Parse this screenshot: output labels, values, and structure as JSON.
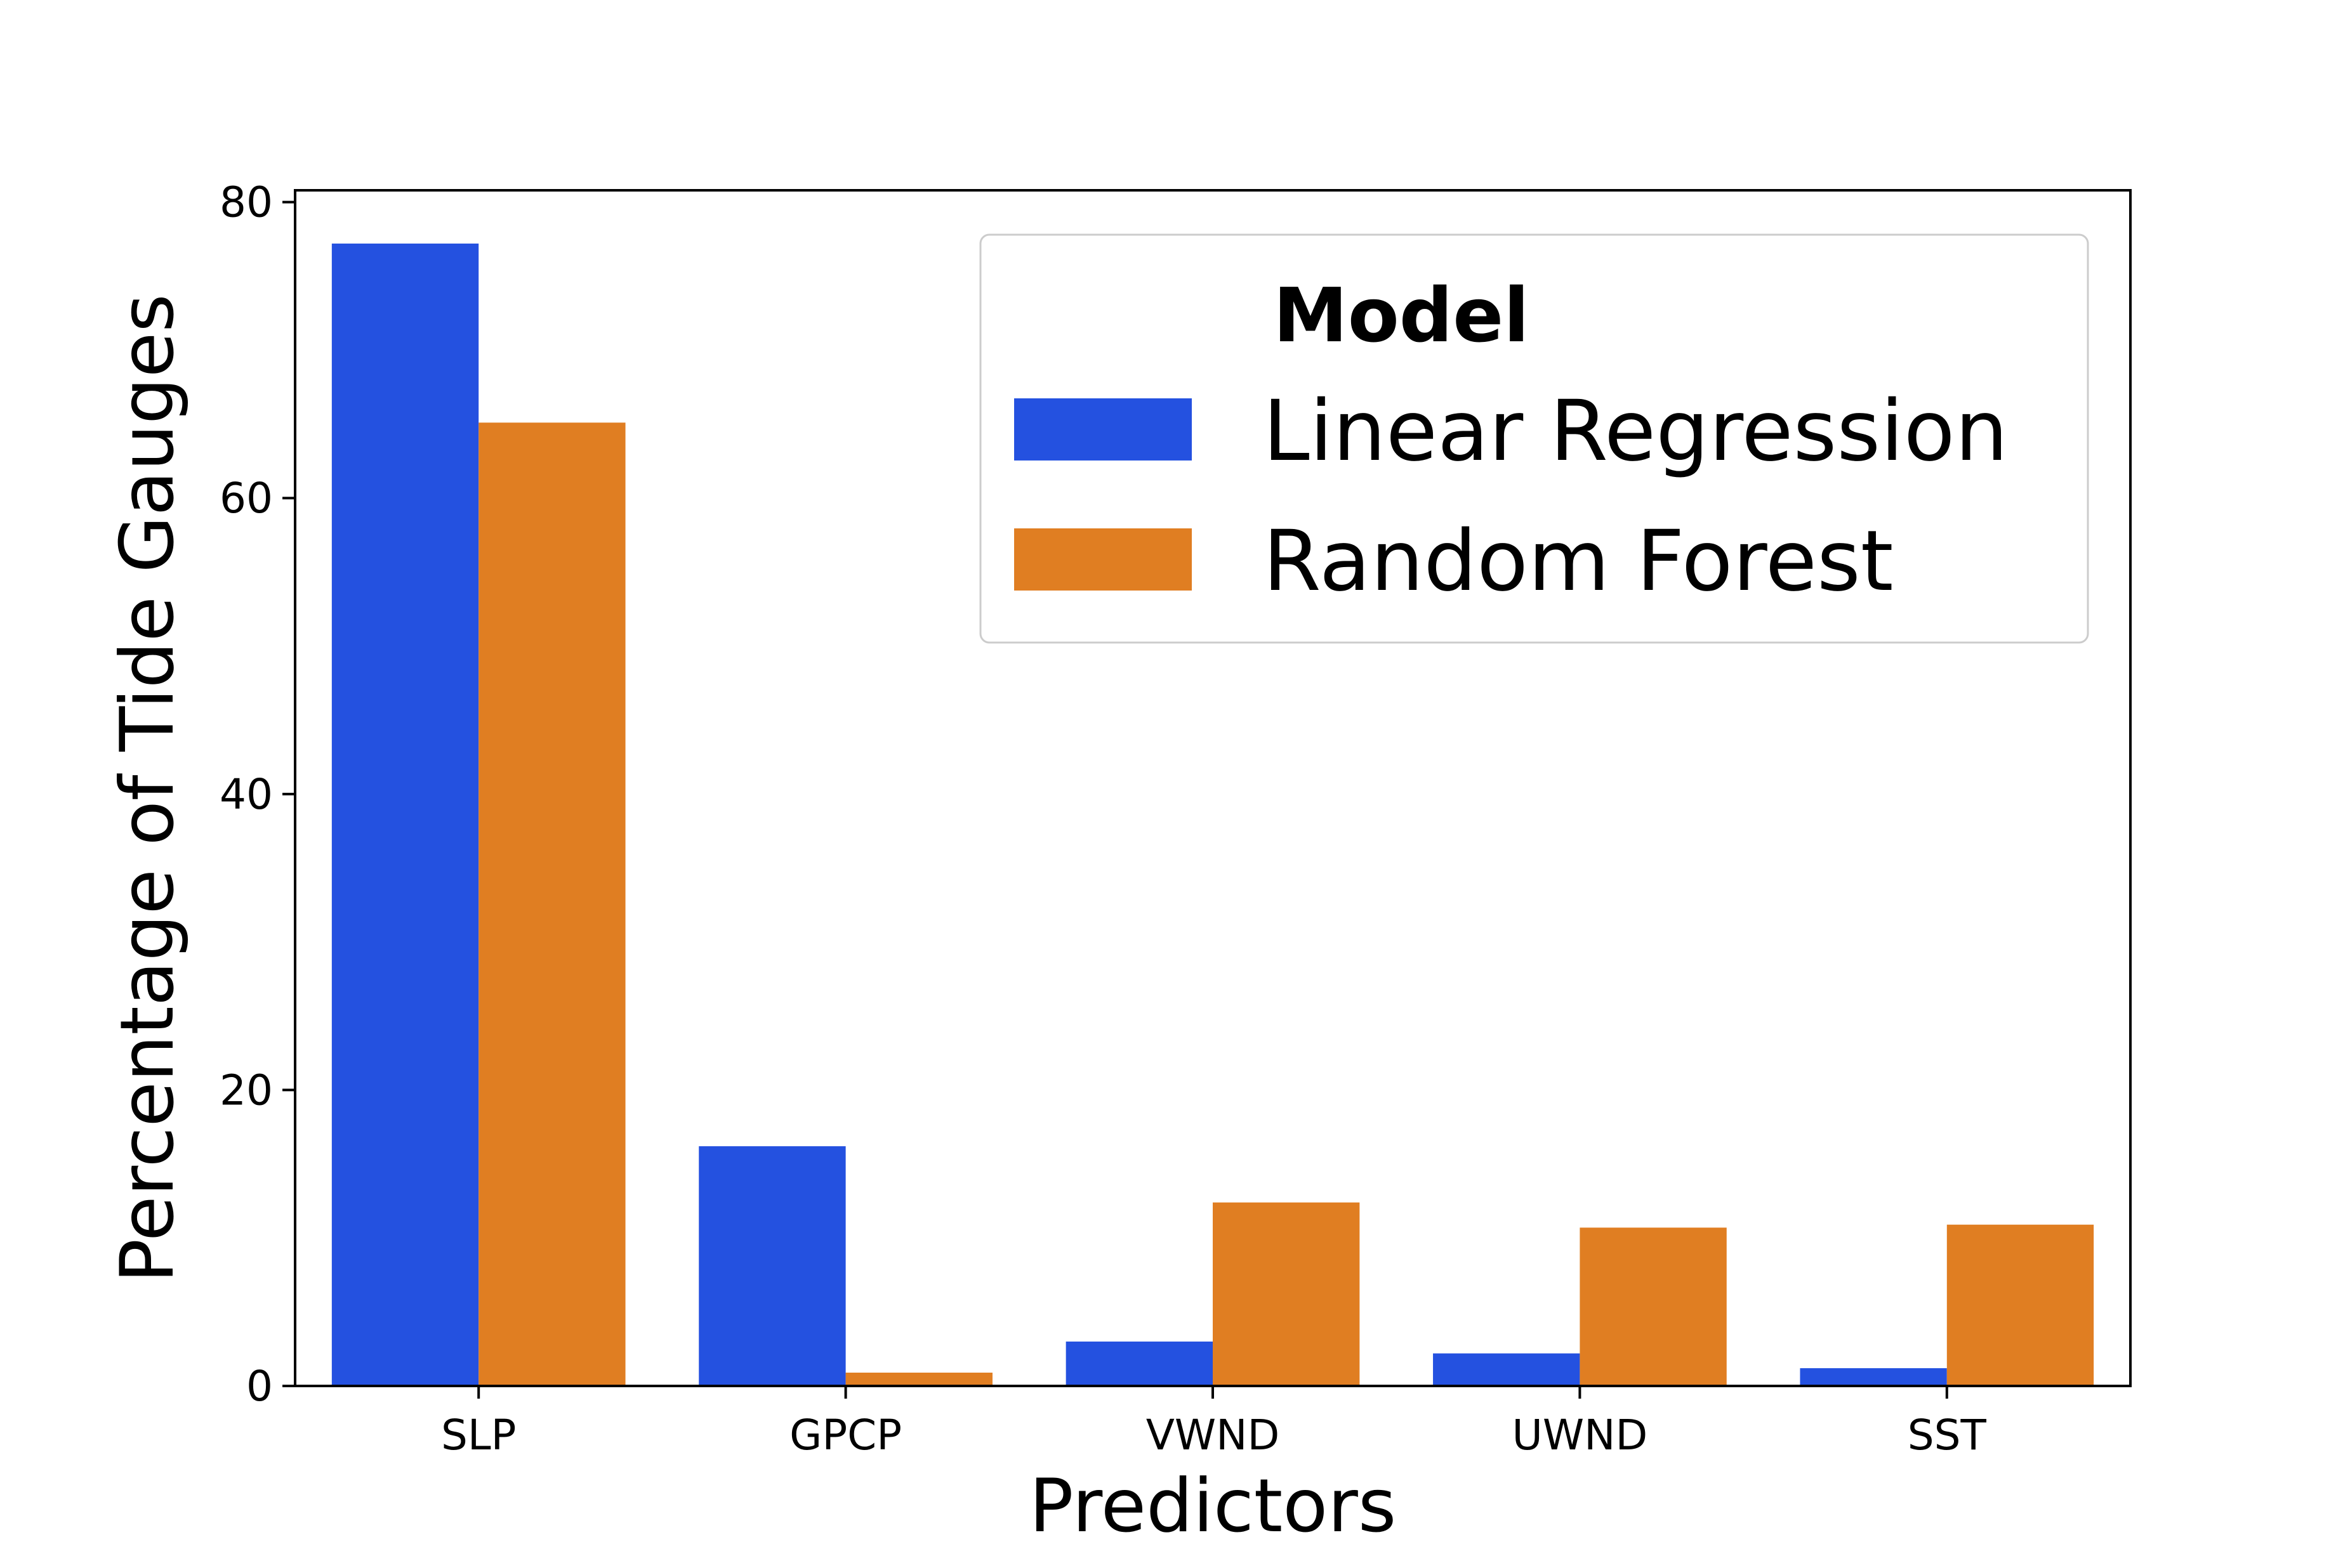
{
  "chart_data": {
    "type": "bar",
    "xlabel": "Predictors",
    "ylabel": "Percentage of Tide Gauges",
    "categories": [
      "SLP",
      "GPCP",
      "VWND",
      "UWND",
      "SST"
    ],
    "series": [
      {
        "name": "Linear Regression",
        "color": "#2451e0",
        "values": [
          77.2,
          16.2,
          3.0,
          2.2,
          1.2
        ]
      },
      {
        "name": "Random Forest",
        "color": "#e07e22",
        "values": [
          65.1,
          0.9,
          12.4,
          10.7,
          10.9
        ]
      }
    ],
    "ylim": [
      0,
      80.8
    ],
    "yticks": [
      "0",
      "20",
      "40",
      "60",
      "80"
    ],
    "ytick_values": [
      0,
      20,
      40,
      60,
      80
    ],
    "grid": false,
    "legend": {
      "title": "Model",
      "placement": "top-right"
    }
  }
}
